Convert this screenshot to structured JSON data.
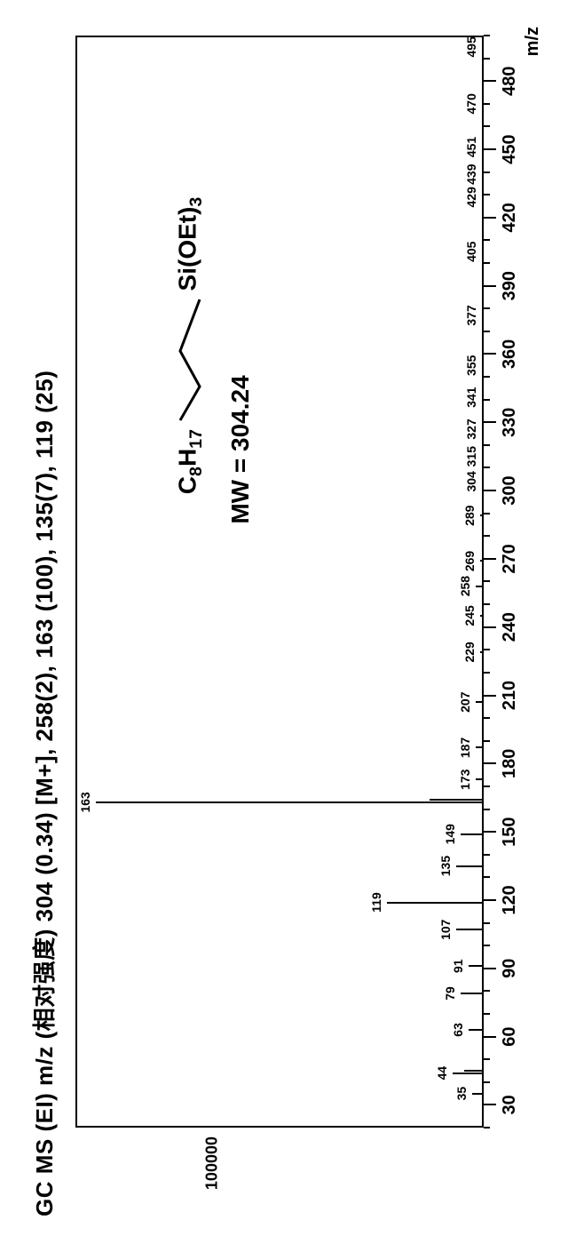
{
  "title": "GC MS (EI) m/z (相对强度)   304 (0.34) [M+], 258(2), 163 (100), 135(7), 119 (25)",
  "molecule": {
    "left_group": "C",
    "left_sub": "8",
    "left_h": "H",
    "left_hsub": "17",
    "right_group": "Si(OEt)",
    "right_sub": "3"
  },
  "mw_label": "MW = 304.24",
  "xaxis": {
    "min": 20,
    "max": 500,
    "major_ticks": [
      30,
      60,
      90,
      120,
      150,
      180,
      210,
      240,
      270,
      300,
      330,
      360,
      390,
      420,
      450,
      480
    ],
    "label": "m/z"
  },
  "yaxis": {
    "ticks": [
      {
        "value": 100000,
        "label": "100000",
        "frac": 0.62
      }
    ]
  },
  "peaks": [
    {
      "mz": 35,
      "h": 3,
      "label": "35",
      "label_dy": 4,
      "show": true
    },
    {
      "mz": 44,
      "h": 8,
      "label": "44",
      "label_dy": 4,
      "show": true
    },
    {
      "mz": 45,
      "h": 5,
      "label": null
    },
    {
      "mz": 63,
      "h": 4,
      "label": "63",
      "label_dy": 4,
      "show": true
    },
    {
      "mz": 79,
      "h": 6,
      "label": "79",
      "label_dy": 4,
      "show": true
    },
    {
      "mz": 91,
      "h": 4,
      "label": "91",
      "label_dy": 4,
      "show": true
    },
    {
      "mz": 107,
      "h": 7,
      "label": "107",
      "label_dy": 4,
      "show": true
    },
    {
      "mz": 119,
      "h": 25,
      "label": "119",
      "label_dy": 4,
      "show": true
    },
    {
      "mz": 135,
      "h": 7,
      "label": "135",
      "label_dy": 4,
      "show": true
    },
    {
      "mz": 149,
      "h": 6,
      "label": "149",
      "label_dy": 4,
      "show": true
    },
    {
      "mz": 163,
      "h": 100,
      "label": "163",
      "label_dy": 4,
      "show": true
    },
    {
      "mz": 164,
      "h": 14,
      "label": null
    },
    {
      "mz": 173,
      "h": 2,
      "label": "173",
      "label_dy": 4,
      "show": true
    },
    {
      "mz": 187,
      "h": 2,
      "label": "187",
      "label_dy": 4,
      "show": true
    },
    {
      "mz": 207,
      "h": 2,
      "label": "207",
      "label_dy": 4,
      "show": true
    },
    {
      "mz": 229,
      "h": 1,
      "label": "229",
      "label_dy": 4,
      "show": true
    },
    {
      "mz": 245,
      "h": 1,
      "label": "245",
      "label_dy": 4,
      "show": true
    },
    {
      "mz": 258,
      "h": 2,
      "label": "258",
      "label_dy": 4,
      "show": true
    },
    {
      "mz": 269,
      "h": 1,
      "label": "269",
      "label_dy": 4,
      "show": true
    },
    {
      "mz": 289,
      "h": 1,
      "label": "289",
      "label_dy": 4,
      "show": true
    },
    {
      "mz": 304,
      "h": 0.5,
      "label": "304",
      "label_dy": 4,
      "show": true
    },
    {
      "mz": 315,
      "h": 0.5,
      "label": "315",
      "label_dy": 4,
      "show": true
    },
    {
      "mz": 327,
      "h": 0.5,
      "label": "327",
      "label_dy": 4,
      "show": true
    },
    {
      "mz": 341,
      "h": 0.5,
      "label": "341",
      "label_dy": 4,
      "show": true
    },
    {
      "mz": 355,
      "h": 0.5,
      "label": "355",
      "label_dy": 4,
      "show": true
    },
    {
      "mz": 377,
      "h": 0.5,
      "label": "377",
      "label_dy": 4,
      "show": true
    },
    {
      "mz": 405,
      "h": 0.5,
      "label": "405",
      "label_dy": 4,
      "show": true
    },
    {
      "mz": 429,
      "h": 0.5,
      "label": "429",
      "label_dy": 4,
      "show": true
    },
    {
      "mz": 439,
      "h": 0.5,
      "label": "439",
      "label_dy": 4,
      "show": true
    },
    {
      "mz": 451,
      "h": 0.5,
      "label": "451",
      "label_dy": 4,
      "show": true
    },
    {
      "mz": 470,
      "h": 0.5,
      "label": "470",
      "label_dy": 4,
      "show": true
    },
    {
      "mz": 495,
      "h": 0.5,
      "label": "495",
      "label_dy": 4,
      "show": true
    }
  ],
  "style": {
    "peak_color": "#000000",
    "border_color": "#000000",
    "bg": "#ffffff",
    "title_fontsize": 26,
    "annotation_fontsize": 28
  }
}
